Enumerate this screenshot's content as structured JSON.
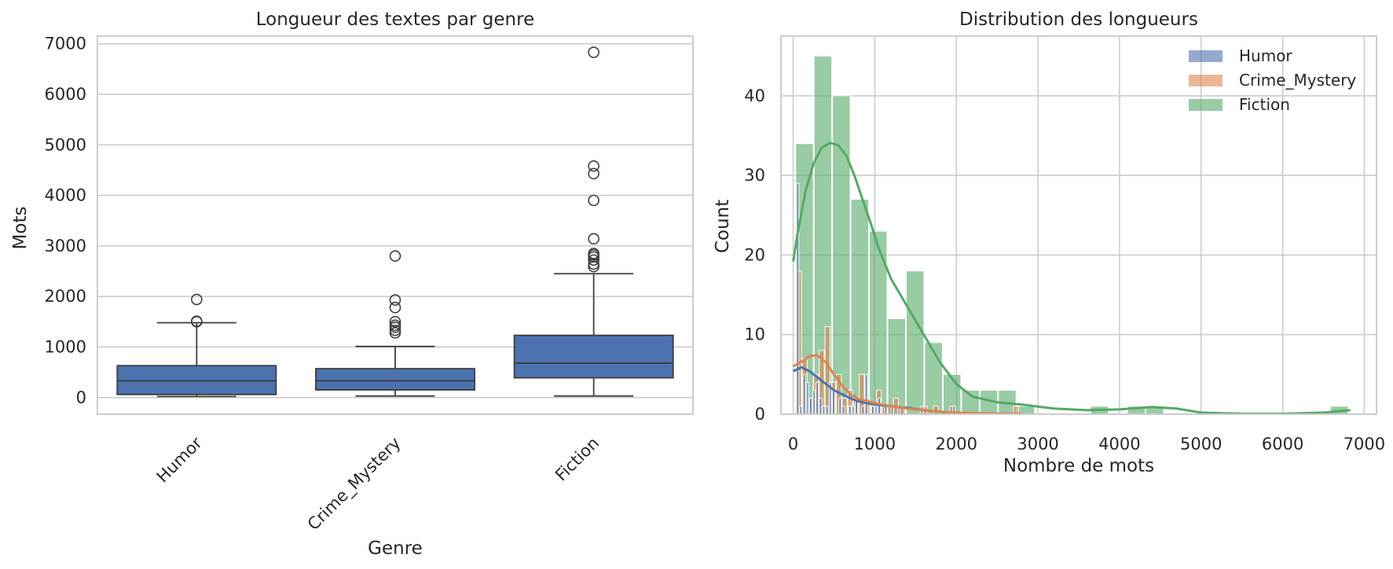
{
  "chart_data": [
    {
      "type": "box",
      "title": "Longueur des textes par genre",
      "xlabel": "Genre",
      "ylabel": "Mots",
      "ylim": [
        -330,
        7150
      ],
      "yticks": [
        0,
        1000,
        2000,
        3000,
        4000,
        5000,
        6000,
        7000
      ],
      "categories": [
        "Humor",
        "Crime_Mystery",
        "Fiction"
      ],
      "box_color": "#4c72b0",
      "boxes": [
        {
          "min": 20,
          "q1": 60,
          "median": 330,
          "q3": 630,
          "max": 1480,
          "outliers": [
            1500,
            1510,
            1940
          ]
        },
        {
          "min": 30,
          "q1": 150,
          "median": 330,
          "q3": 570,
          "max": 1010,
          "outliers": [
            1280,
            1330,
            1390,
            1430,
            1500,
            1780,
            1930,
            2800
          ]
        },
        {
          "min": 30,
          "q1": 390,
          "median": 680,
          "q3": 1230,
          "max": 2450,
          "outliers": [
            2590,
            2640,
            2720,
            2780,
            2820,
            2850,
            3140,
            3900,
            4430,
            4580,
            6830
          ]
        }
      ],
      "grid": true
    },
    {
      "type": "histogram",
      "title": "Distribution des longueurs",
      "xlabel": "Nombre de mots",
      "ylabel": "Count",
      "xlim": [
        -150,
        7150
      ],
      "ylim": [
        0,
        47.5
      ],
      "xticks": [
        0,
        1000,
        2000,
        3000,
        4000,
        5000,
        6000,
        7000
      ],
      "yticks": [
        0,
        10,
        20,
        30,
        40
      ],
      "legend_position": "top-right",
      "grid": true,
      "series": [
        {
          "name": "Humor",
          "color": "#4c72b0",
          "bin_start": 40,
          "bin_width": 40,
          "counts": [
            29,
            1,
            5,
            4,
            2,
            3,
            4,
            2,
            1,
            1,
            4,
            3,
            0,
            2,
            1,
            0,
            1,
            1,
            2,
            0,
            1,
            5,
            0,
            1,
            1,
            2,
            0,
            1,
            0,
            1,
            0,
            1,
            0,
            0,
            0,
            0,
            0,
            0,
            1,
            0,
            0,
            0,
            0,
            0,
            0,
            0,
            0,
            1
          ],
          "kde": [
            [
              0,
              5.4
            ],
            [
              100,
              5.9
            ],
            [
              200,
              5.4
            ],
            [
              300,
              4.6
            ],
            [
              400,
              3.8
            ],
            [
              500,
              3.0
            ],
            [
              600,
              2.5
            ],
            [
              700,
              2.0
            ],
            [
              800,
              1.6
            ],
            [
              1000,
              1.2
            ],
            [
              1200,
              1.0
            ],
            [
              1400,
              0.8
            ],
            [
              1600,
              0.5
            ],
            [
              1800,
              0.3
            ],
            [
              1950,
              0.1
            ]
          ]
        },
        {
          "name": "Crime_Mystery",
          "color": "#dd8452",
          "bin_start": 40,
          "bin_width": 70,
          "counts": [
            18,
            7,
            2,
            5,
            8,
            11,
            4,
            5,
            2,
            3,
            2,
            5,
            2,
            1,
            3,
            1,
            1,
            2,
            1,
            0,
            0,
            0,
            1,
            0,
            1,
            0,
            0,
            1,
            0,
            0,
            0,
            0,
            0,
            0,
            0,
            0,
            0,
            0,
            1
          ],
          "kde": [
            [
              0,
              6.0
            ],
            [
              100,
              6.6
            ],
            [
              200,
              7.3
            ],
            [
              300,
              7.4
            ],
            [
              400,
              6.5
            ],
            [
              500,
              5.0
            ],
            [
              600,
              3.6
            ],
            [
              700,
              2.5
            ],
            [
              800,
              1.9
            ],
            [
              1000,
              1.4
            ],
            [
              1200,
              1.0
            ],
            [
              1400,
              0.7
            ],
            [
              1600,
              0.5
            ],
            [
              1800,
              0.3
            ],
            [
              2000,
              0.2
            ],
            [
              2200,
              0.12
            ],
            [
              2500,
              0.08
            ],
            [
              2800,
              0.05
            ]
          ]
        },
        {
          "name": "Fiction",
          "color": "#55a868",
          "bin_start": 30,
          "bin_width": 226,
          "counts": [
            34,
            45,
            40,
            27,
            23,
            12,
            18,
            9,
            5,
            3,
            3,
            3,
            1,
            0,
            0,
            0,
            1,
            0,
            1,
            1,
            0,
            0,
            0,
            0,
            0,
            0,
            0,
            0,
            0,
            1
          ],
          "kde": [
            [
              0,
              19.2
            ],
            [
              50,
              22.5
            ],
            [
              150,
              28
            ],
            [
              250,
              31.5
            ],
            [
              350,
              33.5
            ],
            [
              450,
              34.1
            ],
            [
              550,
              33.8
            ],
            [
              650,
              32.5
            ],
            [
              750,
              30
            ],
            [
              850,
              27
            ],
            [
              950,
              24
            ],
            [
              1050,
              20.8
            ],
            [
              1200,
              17
            ],
            [
              1400,
              13.5
            ],
            [
              1600,
              10
            ],
            [
              1800,
              6.5
            ],
            [
              2000,
              3.8
            ],
            [
              2200,
              2.2
            ],
            [
              2500,
              1.5
            ],
            [
              2800,
              1.2
            ],
            [
              3200,
              0.7
            ],
            [
              3600,
              0.5
            ],
            [
              4000,
              0.6
            ],
            [
              4400,
              0.9
            ],
            [
              4700,
              0.7
            ],
            [
              5000,
              0.2
            ],
            [
              5500,
              0.05
            ],
            [
              6000,
              0.05
            ],
            [
              6500,
              0.2
            ],
            [
              6830,
              0.5
            ]
          ]
        }
      ]
    }
  ]
}
